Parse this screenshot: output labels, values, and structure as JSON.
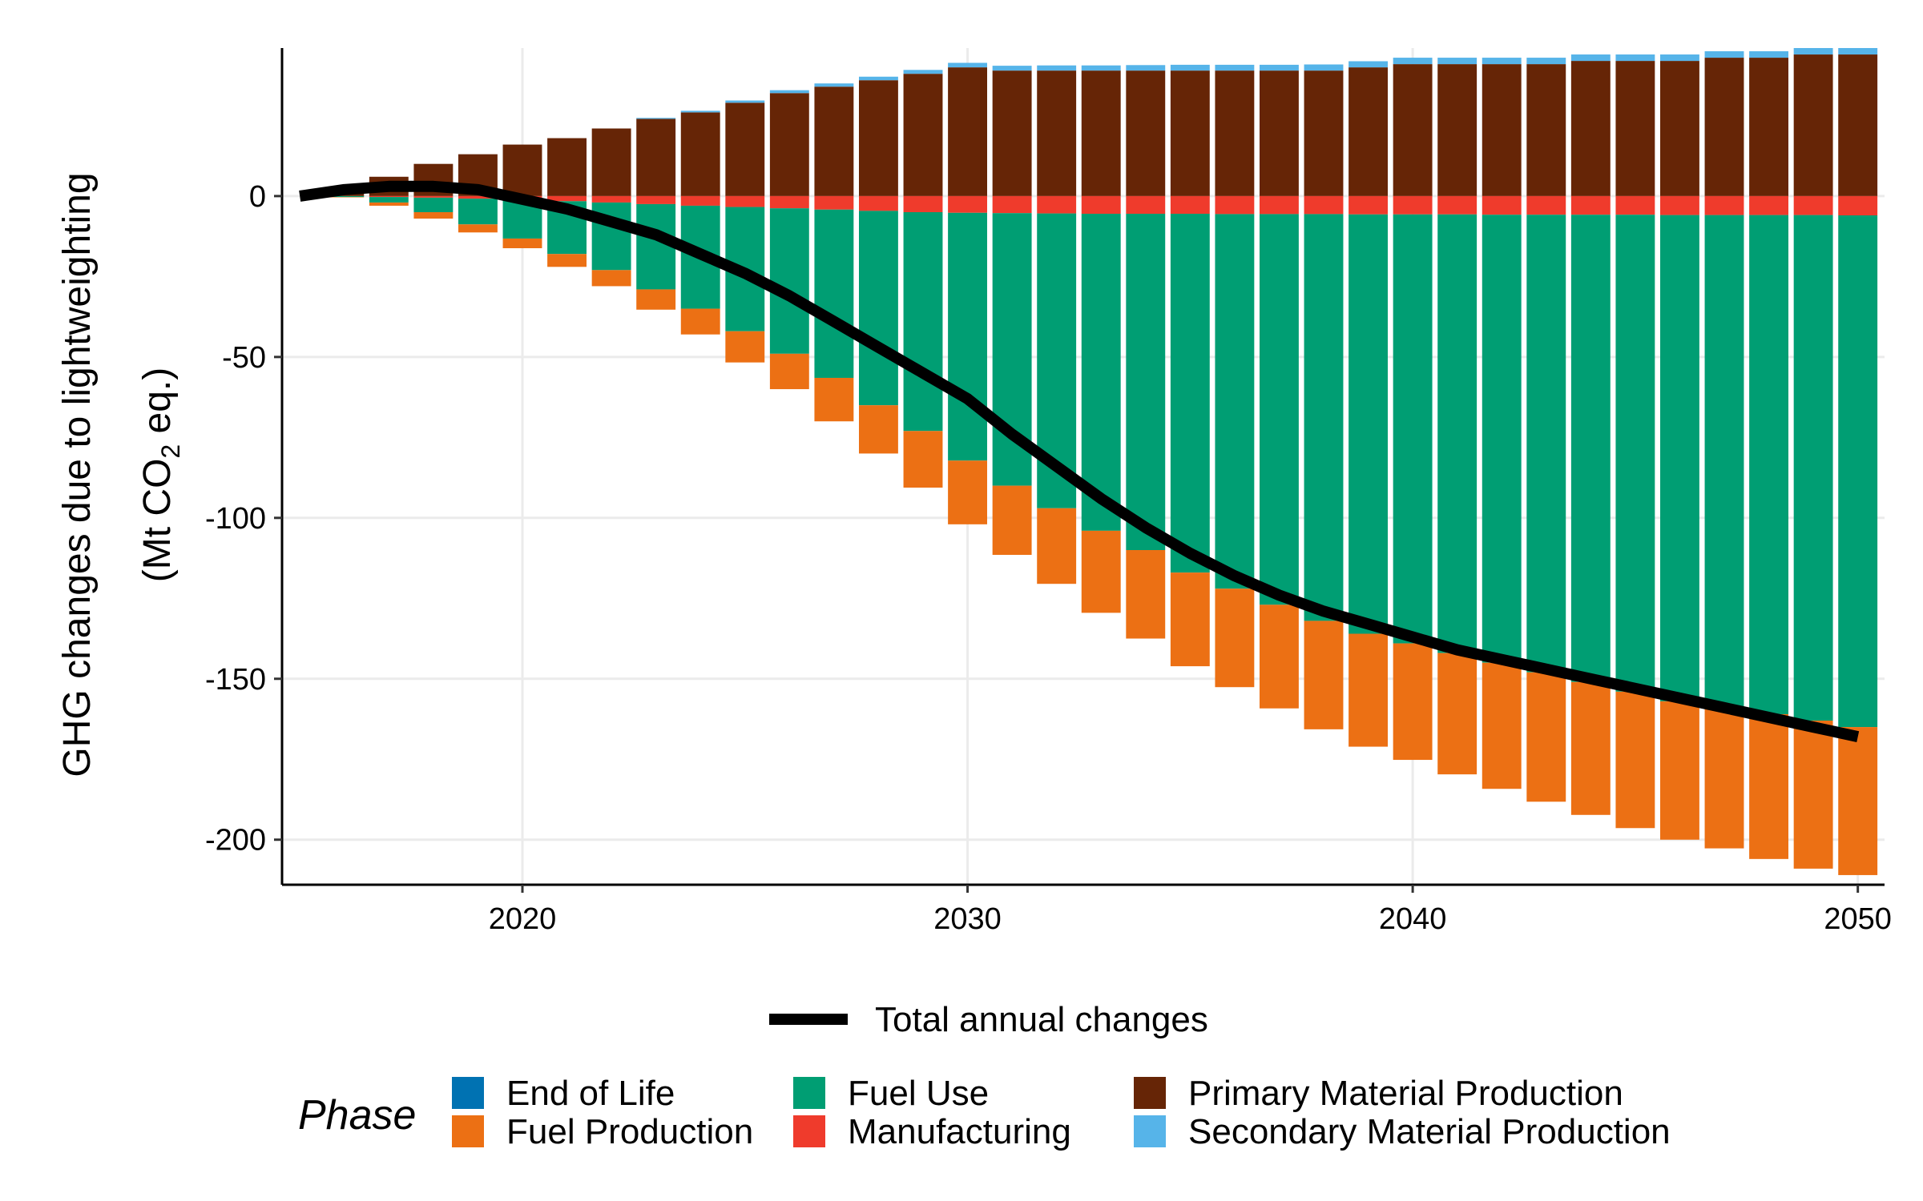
{
  "chart_data": {
    "type": "bar",
    "stacked": true,
    "xlabel": "",
    "ylabel_line1": "GHG changes due to lightweighting",
    "ylabel_line2_prefix": "(Mt CO",
    "ylabel_line2_sub": "2",
    "ylabel_line2_suffix": " eq.)",
    "xlim": [
      2014.6,
      2050.6
    ],
    "ylim": [
      -214,
      46
    ],
    "x_ticks": [
      2020,
      2030,
      2040,
      2050
    ],
    "y_ticks": [
      0,
      -50,
      -100,
      -150,
      -200
    ],
    "y_tick_labels": [
      "0",
      "-50",
      "-100",
      "-150",
      "-200"
    ],
    "grid": true,
    "years": [
      2016,
      2017,
      2018,
      2019,
      2020,
      2021,
      2022,
      2023,
      2024,
      2025,
      2026,
      2027,
      2028,
      2029,
      2030,
      2031,
      2032,
      2033,
      2034,
      2035,
      2036,
      2037,
      2038,
      2039,
      2040,
      2041,
      2042,
      2043,
      2044,
      2045,
      2046,
      2047,
      2048,
      2049,
      2050
    ],
    "series": [
      {
        "name": "Primary Material Production",
        "color": "#662506",
        "values": [
          2,
          6,
          10,
          13,
          16,
          18,
          21,
          24,
          26,
          29,
          32,
          34,
          36,
          38,
          40,
          39,
          39,
          39,
          39,
          39,
          39,
          39,
          39,
          40,
          41,
          41,
          41,
          41,
          42,
          42,
          42,
          43,
          43,
          44,
          44
        ]
      },
      {
        "name": "Secondary Material Production",
        "color": "#56B4E9",
        "values": [
          0,
          0,
          0,
          0,
          0,
          0,
          0,
          0.3,
          0.5,
          0.7,
          0.9,
          1,
          1.1,
          1.2,
          1.4,
          1.5,
          1.6,
          1.6,
          1.7,
          1.8,
          1.8,
          1.8,
          1.9,
          1.9,
          2,
          2,
          2,
          2,
          2,
          2,
          2,
          2,
          2,
          2,
          2
        ]
      },
      {
        "name": "End of Life",
        "color": "#0072B2",
        "values": [
          0,
          0,
          0,
          0,
          0,
          0,
          0,
          0,
          0,
          0,
          0,
          0,
          0,
          0,
          0,
          0,
          0,
          0,
          0,
          0,
          0,
          0,
          0,
          0,
          0,
          0,
          0,
          0,
          0,
          0,
          0,
          0,
          0,
          0,
          0
        ]
      },
      {
        "name": "Manufacturing",
        "color": "#EF3B2C",
        "values": [
          0,
          -0.3,
          -0.5,
          -0.8,
          -1.2,
          -1.6,
          -2,
          -2.5,
          -3,
          -3.4,
          -3.8,
          -4.2,
          -4.6,
          -5,
          -5.2,
          -5.3,
          -5.4,
          -5.5,
          -5.5,
          -5.5,
          -5.6,
          -5.6,
          -5.6,
          -5.7,
          -5.7,
          -5.7,
          -5.8,
          -5.8,
          -5.8,
          -5.8,
          -5.9,
          -5.9,
          -5.9,
          -5.9,
          -6
        ]
      },
      {
        "name": "Fuel Use",
        "color": "#009E73",
        "values": [
          -0.3,
          -1.7,
          -4.5,
          -8,
          -12,
          -16.4,
          -21,
          -26.5,
          -32,
          -38.6,
          -45.2,
          -52.3,
          -60.4,
          -68,
          -77,
          -84.7,
          -91.6,
          -98.5,
          -104.5,
          -111.5,
          -116.4,
          -121.4,
          -126.4,
          -130.3,
          -133.3,
          -136.3,
          -139.2,
          -142.2,
          -145.2,
          -148.2,
          -151.1,
          -153.1,
          -155.1,
          -157.1,
          -159
        ]
      },
      {
        "name": "Fuel Production",
        "color": "#EC7014",
        "values": [
          -0.1,
          -1,
          -2,
          -2.5,
          -3,
          -4,
          -5,
          -6.3,
          -8,
          -9.7,
          -11,
          -13.5,
          -15,
          -17.6,
          -19.8,
          -21.5,
          -23.5,
          -25.5,
          -27.5,
          -29.1,
          -30.6,
          -32.2,
          -33.7,
          -35.1,
          -36.2,
          -37.7,
          -39.2,
          -40.2,
          -41.3,
          -42.4,
          -43,
          -43.7,
          -45,
          -46,
          -46
        ]
      }
    ],
    "line": {
      "name": "Total annual changes",
      "color": "#000000",
      "x": [
        2015,
        2016,
        2017,
        2018,
        2019,
        2020,
        2021,
        2022,
        2023,
        2024,
        2025,
        2026,
        2027,
        2028,
        2029,
        2030,
        2031,
        2032,
        2033,
        2034,
        2035,
        2036,
        2037,
        2038,
        2039,
        2040,
        2041,
        2042,
        2043,
        2044,
        2045,
        2046,
        2047,
        2048,
        2049,
        2050
      ],
      "y": [
        0,
        2,
        3,
        3,
        2,
        -1,
        -4,
        -8,
        -12,
        -18,
        -24,
        -31,
        -39,
        -47,
        -55,
        -63,
        -74,
        -84,
        -94,
        -103,
        -111,
        -118,
        -124,
        -129,
        -133,
        -137,
        -141,
        -144,
        -147,
        -150,
        -153,
        -156,
        -159,
        -162,
        -165,
        -168
      ]
    },
    "legend": {
      "line_label": "Total annual changes",
      "title": "Phase",
      "placement": "bottom",
      "entries": [
        {
          "name": "End of Life",
          "color": "#0072B2"
        },
        {
          "name": "Fuel Production",
          "color": "#EC7014"
        },
        {
          "name": "Fuel Use",
          "color": "#009E73"
        },
        {
          "name": "Manufacturing",
          "color": "#EF3B2C"
        },
        {
          "name": "Primary Material Production",
          "color": "#662506"
        },
        {
          "name": "Secondary Material Production",
          "color": "#56B4E9"
        }
      ]
    }
  }
}
